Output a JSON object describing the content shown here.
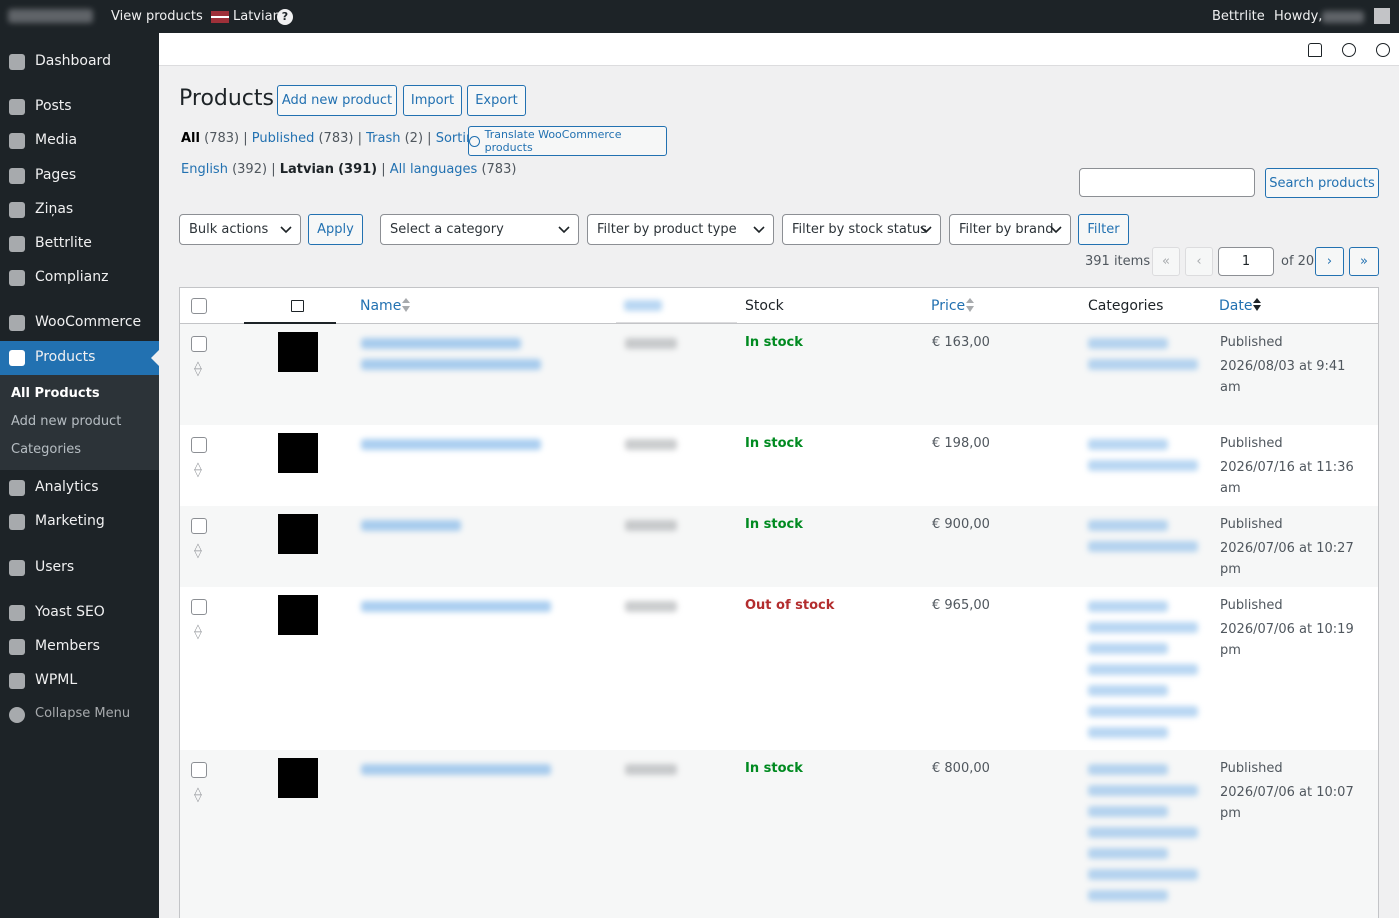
{
  "admin_bar": {
    "view_products": "View products",
    "language": "Latvian",
    "site_menu": "Bettrlite",
    "howdy": "Howdy,"
  },
  "sidebar": {
    "menu": [
      "Dashboard",
      "Posts",
      "Media",
      "Pages",
      "Ziņas",
      "Bettrlite",
      "Complianz",
      "WooCommerce",
      "Products"
    ],
    "submenu": [
      "All Products",
      "Add new product",
      "Categories"
    ],
    "menu_after": [
      "Analytics",
      "Marketing",
      "Users",
      "Yoast SEO",
      "Members",
      "WPML",
      "Collapse Menu"
    ]
  },
  "header": {
    "title": "Products",
    "buttons": [
      "Add new product",
      "Import",
      "Export"
    ]
  },
  "views": [
    {
      "label": "All",
      "count": "(783)"
    },
    {
      "label": "Published",
      "count": "(783)"
    },
    {
      "label": "Trash",
      "count": "(2)"
    },
    {
      "label": "Sorting",
      "count": ""
    }
  ],
  "translate_button": "Translate WooCommerce products",
  "languages": [
    {
      "label": "English",
      "count": "(392)"
    },
    {
      "label": "Latvian",
      "count": "(391)"
    },
    {
      "label": "All languages",
      "count": "(783)"
    }
  ],
  "search_button": "Search products",
  "filters": {
    "bulk": "Bulk actions",
    "apply": "Apply",
    "category": "Select a category",
    "type": "Filter by product type",
    "stock": "Filter by stock status",
    "brand": "Filter by brand",
    "filter": "Filter"
  },
  "pagination": {
    "items": "391 items",
    "first": "«",
    "prev": "‹",
    "current": "1",
    "of": "of 20",
    "next": "›",
    "last": "»"
  },
  "table": {
    "columns": {
      "name": "Name",
      "stock": "Stock",
      "price": "Price",
      "categories": "Categories",
      "date": "Date"
    },
    "rows": [
      {
        "stock": "In stock",
        "price": "€ 163,00",
        "status": "Published",
        "date": "2026/08/03 at 9:41 am"
      },
      {
        "stock": "In stock",
        "price": "€ 198,00",
        "status": "Published",
        "date": "2026/07/16 at 11:36 am"
      },
      {
        "stock": "In stock",
        "price": "€ 900,00",
        "status": "Published",
        "date": "2026/07/06 at 10:27 pm"
      },
      {
        "stock": "Out of stock",
        "price": "€ 965,00",
        "status": "Published",
        "date": "2026/07/06 at 10:19 pm"
      },
      {
        "stock": "In stock",
        "price": "€ 800,00",
        "status": "Published",
        "date": "2026/07/06 at 10:07 pm"
      }
    ]
  }
}
